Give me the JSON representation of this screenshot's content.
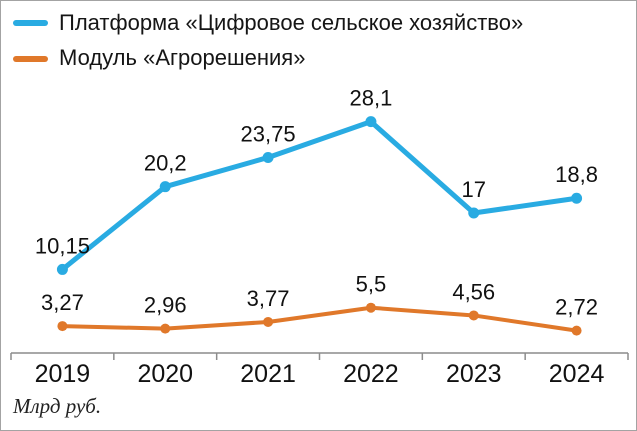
{
  "chart_data": {
    "type": "line",
    "categories": [
      "2019",
      "2020",
      "2021",
      "2022",
      "2023",
      "2024"
    ],
    "series": [
      {
        "name": "Платформа «Цифровое сельское хозяйство»",
        "color": "#29abe2",
        "values": [
          10.15,
          20.2,
          23.75,
          28.1,
          17,
          18.8
        ],
        "labels": [
          "10,15",
          "20,2",
          "23,75",
          "28,1",
          "17",
          "18,8"
        ]
      },
      {
        "name": "Модуль «Агрорешения»",
        "color": "#e0782a",
        "values": [
          3.27,
          2.96,
          3.77,
          5.5,
          4.56,
          2.72
        ],
        "labels": [
          "3,27",
          "2,96",
          "3,77",
          "5,5",
          "4,56",
          "2,72"
        ]
      }
    ],
    "ylim": [
      0,
      30
    ],
    "xlabel": "",
    "ylabel": "",
    "unit_label": "Млрд руб.",
    "grid": false,
    "legend_position": "top-left",
    "axis_color": "#8c8c8c",
    "text_color": "#111111"
  }
}
